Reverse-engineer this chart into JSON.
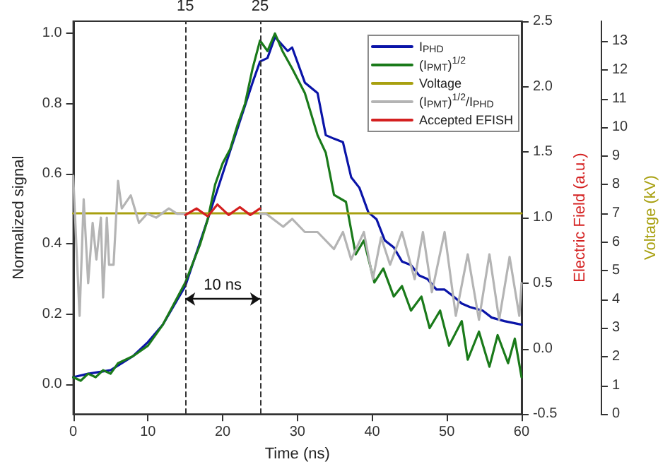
{
  "chart_data": {
    "type": "line",
    "xlabel": "Time (ns)",
    "ylabel": "Normalized signal",
    "y2label": "Electric Field (a.u.)",
    "y3label": "Voltage (kV)",
    "xlim": [
      0,
      60
    ],
    "xticks": [
      0,
      10,
      20,
      30,
      40,
      50,
      60
    ],
    "ylim": [
      -0.085,
      1.035
    ],
    "yticks": [
      {
        "value": 0,
        "label": "0.0"
      },
      0.2,
      0.4,
      0.6,
      0.8,
      {
        "value": 1,
        "label": "1.0"
      }
    ],
    "y2lim": [
      -0.5,
      2.5
    ],
    "y2ticks": [
      -0.5,
      {
        "value": 0,
        "label": "0.0"
      },
      0.5,
      {
        "value": 1,
        "label": "1.0"
      },
      1.5,
      {
        "value": 2,
        "label": "2.0"
      },
      2.5
    ],
    "y3lim": [
      0,
      13.7
    ],
    "y3ticks": [
      0,
      1,
      2,
      3,
      4,
      5,
      6,
      7,
      8,
      9,
      10,
      11,
      12,
      13
    ],
    "legend": "top right",
    "marker": "none",
    "line_style": "solid",
    "grid": false,
    "series": [
      {
        "name": "I$_{PHD}$",
        "color": "#0a14a8",
        "x": [
          0,
          2,
          5,
          8,
          10,
          12,
          15,
          18,
          20,
          22,
          24,
          25,
          26,
          27,
          28.7,
          29.3,
          31,
          32.7,
          33.8,
          34.9,
          36.1,
          37.2,
          38.3,
          39.5,
          40.6,
          41.7,
          42.9,
          44.0,
          45.2,
          46.3,
          47.4,
          48.6,
          49.7,
          50.9,
          52.0,
          53.1,
          54.8,
          56.0,
          57.7,
          60
        ],
        "values": [
          0.02,
          0.03,
          0.04,
          0.08,
          0.12,
          0.17,
          0.28,
          0.47,
          0.6,
          0.73,
          0.86,
          0.92,
          0.93,
          0.99,
          0.95,
          0.96,
          0.86,
          0.83,
          0.71,
          0.7,
          0.69,
          0.59,
          0.56,
          0.49,
          0.47,
          0.41,
          0.39,
          0.35,
          0.34,
          0.31,
          0.3,
          0.27,
          0.27,
          0.25,
          0.23,
          0.22,
          0.21,
          0.19,
          0.18,
          0.17
        ]
      },
      {
        "name": "(I$_{PMT}$)$^{1/2}$",
        "color": "#1a7a1a",
        "x": [
          0,
          1,
          2,
          3,
          4,
          5,
          6,
          8,
          10,
          12,
          15,
          17,
          18,
          19,
          20,
          21,
          22,
          23,
          24,
          25,
          26,
          27,
          28,
          29.3,
          31,
          32.7,
          33.8,
          34.9,
          36.5,
          37.8,
          38.9,
          40.3,
          41.5,
          42.9,
          44.0,
          45.2,
          46.6,
          47.7,
          49.1,
          50.3,
          52.0,
          52.8,
          54.3,
          55.7,
          56.8,
          58.2,
          59.1,
          60
        ],
        "values": [
          0.02,
          0.01,
          0.03,
          0.02,
          0.04,
          0.03,
          0.06,
          0.08,
          0.11,
          0.17,
          0.29,
          0.4,
          0.47,
          0.57,
          0.63,
          0.67,
          0.74,
          0.8,
          0.9,
          0.98,
          0.95,
          1.0,
          0.95,
          0.9,
          0.83,
          0.71,
          0.66,
          0.54,
          0.52,
          0.37,
          0.41,
          0.29,
          0.33,
          0.25,
          0.28,
          0.21,
          0.25,
          0.16,
          0.21,
          0.11,
          0.18,
          0.07,
          0.15,
          0.05,
          0.14,
          0.06,
          0.13,
          0.02
        ]
      },
      {
        "name": "Voltage",
        "color": "#a8a010",
        "axis": "y3",
        "x": [
          0,
          60
        ],
        "values": [
          7.0,
          7.0
        ]
      },
      {
        "name": "(I$_{PMT}$)$^{1/2}$/I$_{PHD}$",
        "color": "#b4b4b4",
        "axis": "y2",
        "x": [
          0,
          0.85,
          1.4,
          2,
          2.6,
          3.1,
          3.7,
          4,
          4.5,
          4.8,
          5.4,
          6,
          6.5,
          7.7,
          8.8,
          9.9,
          11.1,
          12.8,
          13.9,
          15,
          20,
          25,
          25.8,
          28.1,
          29.3,
          31,
          32.7,
          34.9,
          36.1,
          37.2,
          38.9,
          40.1,
          41.2,
          42.4,
          44,
          45.7,
          46.8,
          48,
          49.7,
          51.2,
          52.8,
          54.3,
          55.7,
          57,
          58.4,
          59.7,
          60
        ],
        "values": [
          1.32,
          0.25,
          1.14,
          0.5,
          0.96,
          0.68,
          1.0,
          0.39,
          1.0,
          0.64,
          0.64,
          1.28,
          1.07,
          1.17,
          0.96,
          1.03,
          1.0,
          1.07,
          1.03,
          1.03,
          null,
          1.03,
          1.03,
          0.93,
          0.99,
          0.89,
          0.89,
          0.76,
          0.89,
          0.68,
          0.89,
          0.53,
          0.85,
          0.64,
          0.89,
          0.53,
          0.89,
          0.43,
          0.89,
          0.25,
          0.72,
          0.22,
          0.72,
          0.22,
          0.7,
          0.25,
          0.5
        ]
      },
      {
        "name": "Accepted EFISH",
        "color": "#d42020",
        "axis": "y2",
        "x": [
          15,
          16.5,
          18,
          19.3,
          20.8,
          22.3,
          23.7,
          25
        ],
        "values": [
          1.02,
          1.07,
          1.01,
          1.1,
          1.02,
          1.08,
          1.02,
          1.07
        ]
      }
    ],
    "ref_lines": [
      {
        "axis": "x",
        "value": 15,
        "label": "15",
        "color": "#333333",
        "line_style": "dashed"
      },
      {
        "axis": "x",
        "value": 25,
        "label": "25",
        "color": "#333333",
        "line_style": "dashed"
      }
    ],
    "annotations": [
      "10 ns"
    ]
  }
}
